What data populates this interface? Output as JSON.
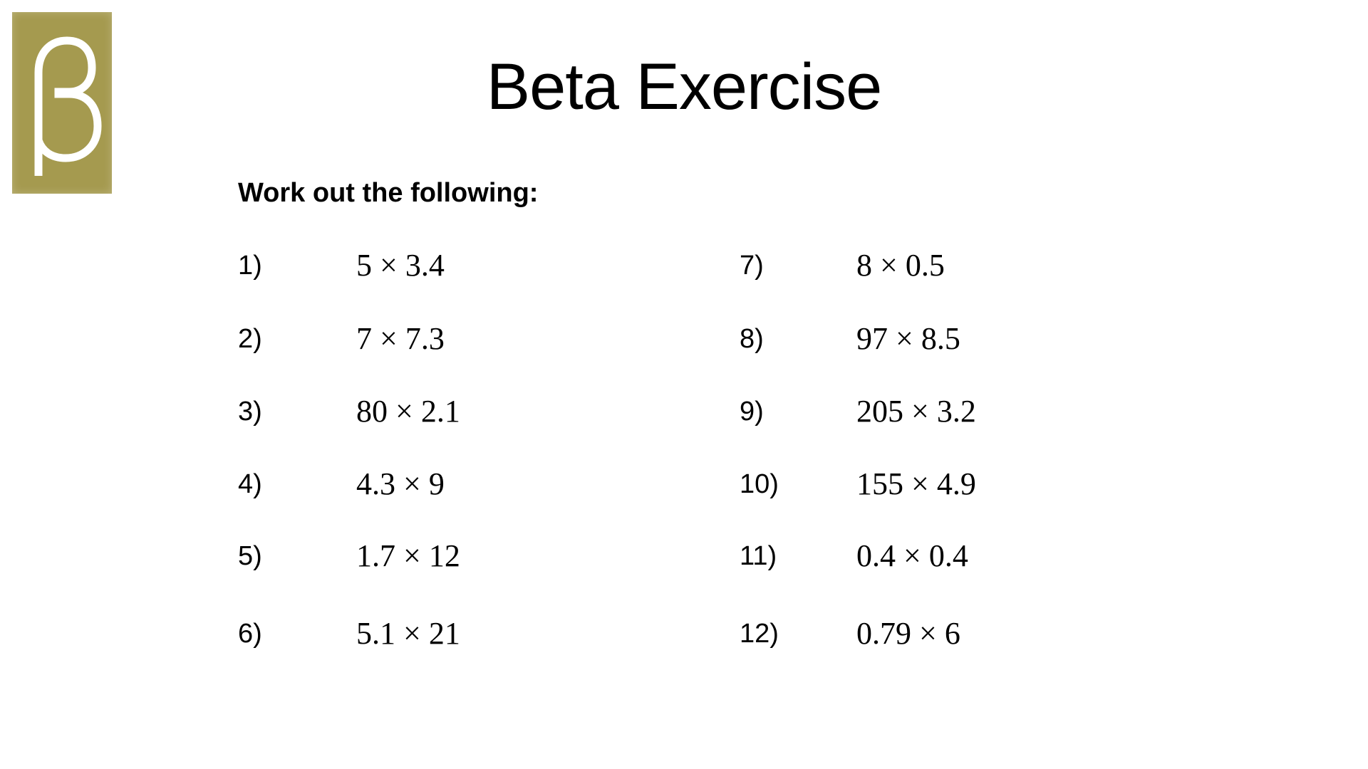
{
  "logo": {
    "text": "β",
    "color": "#a59a4f"
  },
  "title": "Beta Exercise",
  "instruction": "Work out the following:",
  "questions": [
    {
      "num": "1)",
      "expr": "5 × 3.4"
    },
    {
      "num": "2)",
      "expr": "7 × 7.3"
    },
    {
      "num": "3)",
      "expr": "80 × 2.1"
    },
    {
      "num": "4)",
      "expr": "4.3 × 9"
    },
    {
      "num": "5)",
      "expr": "1.7 × 12"
    },
    {
      "num": "6)",
      "expr": "5.1 × 21"
    },
    {
      "num": "7)",
      "expr": "8 × 0.5"
    },
    {
      "num": "8)",
      "expr": "97 × 8.5"
    },
    {
      "num": "9)",
      "expr": "205 × 3.2"
    },
    {
      "num": "10)",
      "expr": "155 × 4.9"
    },
    {
      "num": "11)",
      "expr": "0.4 × 0.4"
    },
    {
      "num": "12)",
      "expr": "0.79 × 6"
    }
  ]
}
